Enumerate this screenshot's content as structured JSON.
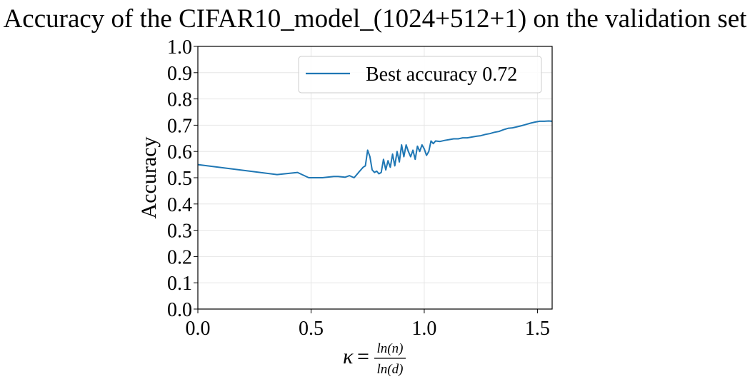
{
  "chart_data": {
    "type": "line",
    "title": "Accuracy of the CIFAR10_model_(1024+512+1) on the validation set",
    "ylabel": "Accuracy",
    "xlabel": {
      "symbol": "κ",
      "equals": "=",
      "numerator": "ln(n)",
      "denominator": "ln(d)"
    },
    "xlim": [
      0,
      1.565
    ],
    "ylim": [
      0,
      1.0
    ],
    "xticks": [
      0.0,
      0.5,
      1.0,
      1.5
    ],
    "xtick_labels": [
      "0.0",
      "0.5",
      "1.0",
      "1.5"
    ],
    "yticks": [
      0.0,
      0.1,
      0.2,
      0.3,
      0.4,
      0.5,
      0.6,
      0.7,
      0.8,
      0.9,
      1.0
    ],
    "ytick_labels": [
      "0.0",
      "0.1",
      "0.2",
      "0.3",
      "0.4",
      "0.5",
      "0.6",
      "0.7",
      "0.8",
      "0.9",
      "1.0"
    ],
    "grid": true,
    "legend_position": "top-right",
    "series": [
      {
        "name": "Best accuracy 0.72",
        "color": "#1f77b4",
        "x": [
          0.0,
          0.35,
          0.44,
          0.49,
          0.55,
          0.6,
          0.62,
          0.65,
          0.67,
          0.69,
          0.7,
          0.71,
          0.72,
          0.73,
          0.74,
          0.75,
          0.76,
          0.77,
          0.78,
          0.79,
          0.8,
          0.81,
          0.82,
          0.83,
          0.84,
          0.85,
          0.86,
          0.87,
          0.88,
          0.89,
          0.9,
          0.91,
          0.92,
          0.93,
          0.94,
          0.95,
          0.96,
          0.97,
          0.98,
          0.99,
          1.0,
          1.01,
          1.02,
          1.03,
          1.04,
          1.05,
          1.07,
          1.09,
          1.11,
          1.13,
          1.15,
          1.17,
          1.19,
          1.21,
          1.23,
          1.25,
          1.27,
          1.29,
          1.31,
          1.33,
          1.35,
          1.37,
          1.39,
          1.41,
          1.43,
          1.45,
          1.47,
          1.49,
          1.51,
          1.53,
          1.55,
          1.565
        ],
        "values": [
          0.55,
          0.512,
          0.52,
          0.5,
          0.5,
          0.505,
          0.505,
          0.502,
          0.508,
          0.5,
          0.51,
          0.52,
          0.53,
          0.54,
          0.545,
          0.605,
          0.58,
          0.53,
          0.52,
          0.525,
          0.515,
          0.52,
          0.57,
          0.53,
          0.565,
          0.54,
          0.59,
          0.545,
          0.6,
          0.56,
          0.625,
          0.58,
          0.625,
          0.6,
          0.58,
          0.605,
          0.57,
          0.62,
          0.6,
          0.625,
          0.61,
          0.585,
          0.6,
          0.64,
          0.63,
          0.64,
          0.638,
          0.642,
          0.645,
          0.648,
          0.648,
          0.652,
          0.652,
          0.655,
          0.658,
          0.66,
          0.665,
          0.668,
          0.673,
          0.676,
          0.683,
          0.688,
          0.69,
          0.694,
          0.698,
          0.703,
          0.708,
          0.712,
          0.715,
          0.715,
          0.716,
          0.715
        ]
      }
    ]
  }
}
